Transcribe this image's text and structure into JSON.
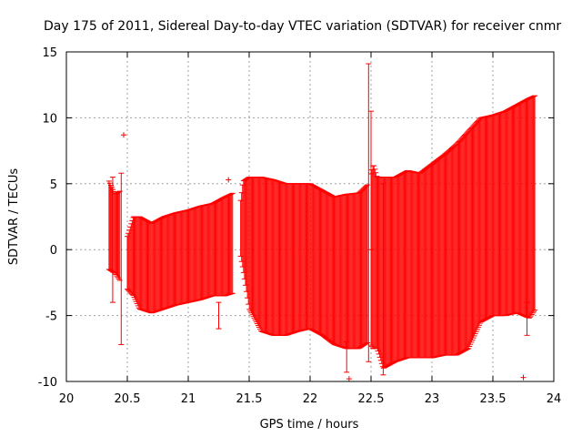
{
  "chart_data": {
    "type": "errorbar",
    "title": "Day 175 of 2011, Sidereal Day-to-day VTEC variation (SDTVAR) for receiver cnmr",
    "xlabel": "GPS time / hours",
    "ylabel": "SDTVAR / TECUs",
    "xlim": [
      20,
      24
    ],
    "ylim": [
      -10,
      15
    ],
    "xticks": [
      20,
      20.5,
      21,
      21.5,
      22,
      22.5,
      23,
      23.5,
      24
    ],
    "xtick_labels": [
      "20",
      "20.5",
      "21",
      "21.5",
      "22",
      "22.5",
      "23",
      "23.5",
      "24"
    ],
    "yticks": [
      -10,
      -5,
      0,
      5,
      10,
      15
    ],
    "ytick_labels": [
      "-10",
      "-5",
      "0",
      "5",
      "10",
      "15"
    ],
    "grid": true,
    "series_color": "#ff0000",
    "grid_color": "#a0a0a0",
    "envelope": {
      "x": [
        20.35,
        20.4,
        20.45,
        20.5,
        20.55,
        20.6,
        20.7,
        20.8,
        20.9,
        21.0,
        21.1,
        21.2,
        21.3,
        21.37,
        21.42,
        21.45,
        21.5,
        21.6,
        21.7,
        21.8,
        21.9,
        22.0,
        22.1,
        22.2,
        22.3,
        22.4,
        22.48,
        22.52,
        22.55,
        22.6,
        22.7,
        22.8,
        22.9,
        23.0,
        23.1,
        23.2,
        23.3,
        23.4,
        23.5,
        23.6,
        23.7,
        23.8,
        23.85
      ],
      "upper": [
        5.2,
        4.2,
        4.5,
        1.0,
        2.5,
        2.5,
        2.0,
        2.5,
        2.8,
        3.0,
        3.3,
        3.5,
        4.0,
        4.3,
        3.0,
        5.2,
        5.5,
        5.5,
        5.3,
        5.0,
        5.0,
        5.0,
        4.5,
        4.0,
        4.2,
        4.3,
        5.0,
        6.5,
        5.5,
        5.5,
        5.5,
        6.0,
        5.8,
        6.5,
        7.2,
        8.0,
        9.0,
        10.0,
        10.2,
        10.5,
        11.0,
        11.5,
        11.7
      ],
      "lower": [
        -1.5,
        -1.8,
        -2.5,
        -3.0,
        -3.5,
        -4.5,
        -4.8,
        -4.5,
        -4.2,
        -4.0,
        -3.8,
        -3.5,
        -3.5,
        -3.3,
        0.0,
        -1.5,
        -4.5,
        -6.2,
        -6.5,
        -6.5,
        -6.2,
        -6.0,
        -6.5,
        -7.2,
        -7.5,
        -7.5,
        -7.0,
        -7.5,
        -7.5,
        -9.0,
        -8.5,
        -8.2,
        -8.2,
        -8.2,
        -8.0,
        -8.0,
        -7.5,
        -5.5,
        -5.0,
        -5.0,
        -4.8,
        -5.2,
        -4.5
      ]
    },
    "outliers": [
      {
        "x": 20.38,
        "y_top": 5.5,
        "y_bottom": -4.0
      },
      {
        "x": 20.45,
        "y_top": 5.8,
        "y_bottom": -7.2
      },
      {
        "x": 20.47,
        "y_top": 8.7,
        "y_bottom": 8.7
      },
      {
        "x": 21.25,
        "y_top": -4.0,
        "y_bottom": -6.0
      },
      {
        "x": 21.33,
        "y_top": 5.3,
        "y_bottom": 5.3
      },
      {
        "x": 22.3,
        "y_top": -7.0,
        "y_bottom": -9.3
      },
      {
        "x": 22.32,
        "y_top": -9.8,
        "y_bottom": -9.8
      },
      {
        "x": 22.48,
        "y_top": 14.1,
        "y_bottom": -8.5
      },
      {
        "x": 22.5,
        "y_top": 10.5,
        "y_bottom": 0.0
      },
      {
        "x": 22.6,
        "y_top": 5.0,
        "y_bottom": -9.5
      },
      {
        "x": 23.75,
        "y_top": -9.7,
        "y_bottom": -9.7
      },
      {
        "x": 23.78,
        "y_top": -4.0,
        "y_bottom": -6.5
      }
    ]
  }
}
